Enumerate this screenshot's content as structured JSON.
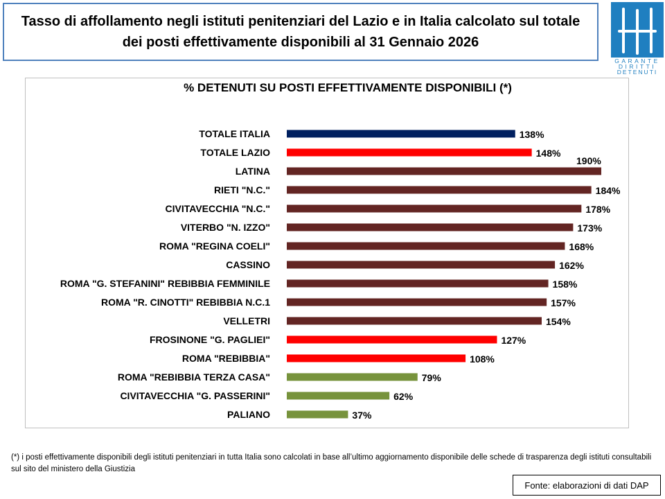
{
  "header": {
    "title": "Tasso di affollamento negli istituti penitenziari del Lazio e in Italia calcolato sul totale dei posti effettivamente disponibili al 31 Gennaio 2026",
    "logo_text": "GARANTE DIRITTI DETENUTI"
  },
  "chart_data": {
    "type": "bar",
    "orientation": "horizontal",
    "title": "% DETENUTI SU POSTI EFFETTIVAMENTE DISPONIBILI (*)",
    "xlabel": "",
    "ylabel": "",
    "xlim": [
      0,
      200
    ],
    "grid": false,
    "categories": [
      "TOTALE ITALIA",
      "TOTALE LAZIO",
      "LATINA",
      "RIETI \"N.C.\"",
      "CIVITAVECCHIA \"N.C.\"",
      "VITERBO \"N. IZZO\"",
      "ROMA \"REGINA COELI\"",
      "CASSINO",
      "ROMA \"G. STEFANINI\" REBIBBIA FEMMINILE",
      "ROMA \"R. CINOTTI\" REBIBBIA N.C.1",
      "VELLETRI",
      "FROSINONE \"G. PAGLIEI\"",
      "ROMA \"REBIBBIA\"",
      "ROMA \"REBIBBIA TERZA CASA\"",
      "CIVITAVECCHIA \"G. PASSERINI\"",
      "PALIANO"
    ],
    "values": [
      138,
      148,
      190,
      184,
      178,
      173,
      168,
      162,
      158,
      157,
      154,
      127,
      108,
      79,
      62,
      37
    ],
    "labels": [
      "138%",
      "148%",
      "190%",
      "184%",
      "178%",
      "173%",
      "168%",
      "162%",
      "158%",
      "157%",
      "154%",
      "127%",
      "108%",
      "79%",
      "62%",
      "37%"
    ],
    "colors": [
      "#002060",
      "#ff0000",
      "#632523",
      "#632523",
      "#632523",
      "#632523",
      "#632523",
      "#632523",
      "#632523",
      "#632523",
      "#632523",
      "#ff0000",
      "#ff0000",
      "#77933c",
      "#77933c",
      "#77933c"
    ]
  },
  "footnote": "(*) i posti effettivamente disponibili  degli istituti penitenziari in tutta Italia sono calcolati in base all’ultimo aggiornamento disponibile  delle schede di trasparenza degli istituti consultabili sul sito del ministero della Giustizia",
  "source": "Fonte: elaborazioni di dati DAP"
}
